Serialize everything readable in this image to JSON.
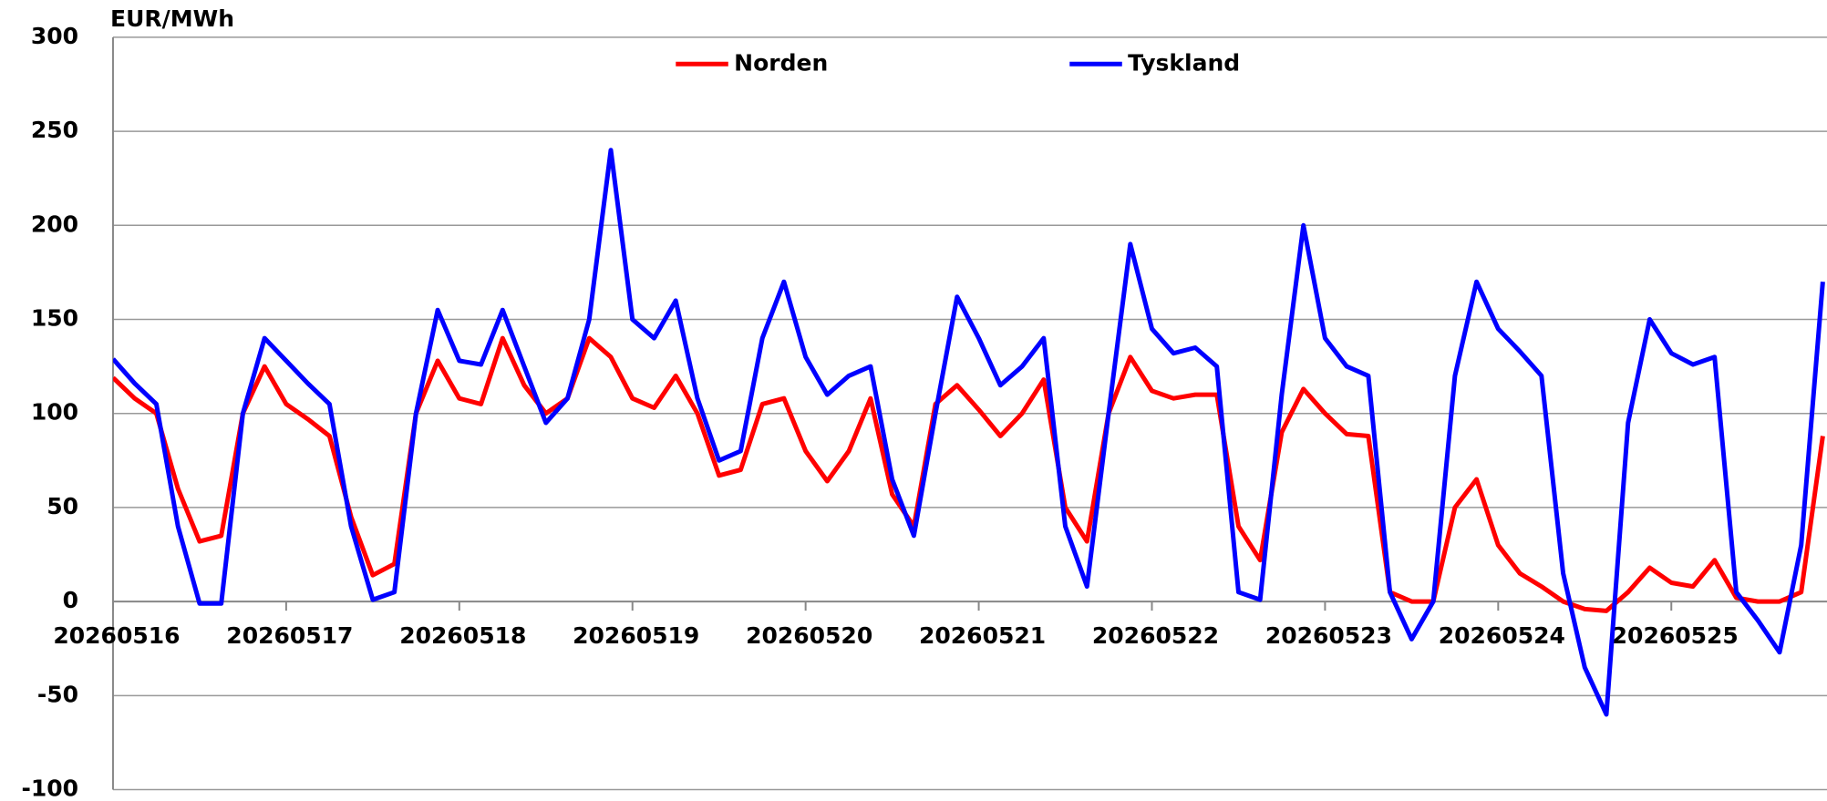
{
  "chart_data": {
    "type": "line",
    "title": "EUR/MWh",
    "categories": [
      "20260516",
      null,
      null,
      null,
      null,
      null,
      null,
      null,
      "20260517",
      null,
      null,
      null,
      null,
      null,
      null,
      null,
      "20260518",
      null,
      null,
      null,
      null,
      null,
      null,
      null,
      "20260519",
      null,
      null,
      null,
      null,
      null,
      null,
      null,
      "20260520",
      null,
      null,
      null,
      null,
      null,
      null,
      null,
      "20260521",
      null,
      null,
      null,
      null,
      null,
      null,
      null,
      "20260522",
      null,
      null,
      null,
      null,
      null,
      null,
      null,
      "20260523",
      null,
      null,
      null,
      null,
      null,
      null,
      null,
      "20260524",
      null,
      null,
      null,
      null,
      null,
      null,
      null,
      "20260525",
      null,
      null,
      null,
      null,
      null,
      null,
      null
    ],
    "series": [
      {
        "name": "Norden",
        "color": "#ff0000",
        "values": [
          119,
          108,
          100,
          60,
          32,
          35,
          100,
          125,
          105,
          97,
          88,
          45,
          14,
          20,
          100,
          128,
          108,
          105,
          140,
          115,
          100,
          108,
          140,
          130,
          108,
          103,
          120,
          100,
          67,
          70,
          105,
          108,
          80,
          64,
          80,
          108,
          57,
          40,
          105,
          115,
          102,
          88,
          100,
          118,
          50,
          32,
          100,
          130,
          112,
          108,
          110,
          110,
          40,
          22,
          90,
          113,
          100,
          89,
          88,
          5,
          0,
          0,
          50,
          65,
          30,
          15,
          8,
          0,
          -4,
          -5,
          5,
          18,
          10,
          8,
          22,
          2,
          0,
          0,
          5,
          88
        ]
      },
      {
        "name": "Tyskland",
        "color": "#0000ff",
        "values": [
          129,
          116,
          105,
          40,
          -1,
          -1,
          100,
          140,
          128,
          116,
          105,
          40,
          1,
          5,
          100,
          155,
          128,
          126,
          155,
          125,
          95,
          108,
          150,
          240,
          150,
          140,
          160,
          108,
          75,
          80,
          140,
          170,
          130,
          110,
          120,
          125,
          65,
          35,
          100,
          162,
          140,
          115,
          125,
          140,
          40,
          8,
          100,
          190,
          145,
          132,
          135,
          125,
          5,
          1,
          110,
          200,
          140,
          125,
          120,
          5,
          -20,
          0,
          120,
          170,
          145,
          133,
          120,
          15,
          -35,
          -60,
          95,
          150,
          132,
          126,
          130,
          5,
          -10,
          -27,
          30,
          170
        ]
      }
    ],
    "ylim": [
      -100,
      300
    ],
    "yticks": [
      -100,
      -50,
      0,
      50,
      100,
      150,
      200,
      250,
      300
    ],
    "grid": true
  }
}
